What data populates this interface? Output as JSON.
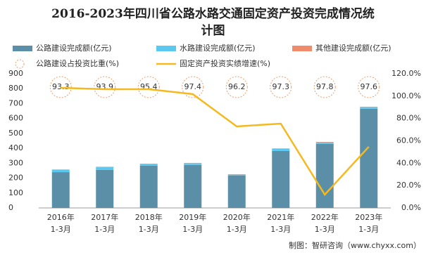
{
  "chart_data": {
    "type": "bar",
    "title": "2016-2023年四川省公路水路交通固定资产投资完成情况统计图",
    "categories": [
      [
        "2016年",
        "1-3月"
      ],
      [
        "2017年",
        "1-3月"
      ],
      [
        "2018年",
        "1-3月"
      ],
      [
        "2019年",
        "1-3月"
      ],
      [
        "2020年",
        "1-3月"
      ],
      [
        "2021年",
        "1-3月"
      ],
      [
        "2022年",
        "1-3月"
      ],
      [
        "2023年",
        "1-3月"
      ]
    ],
    "series": [
      {
        "name": "公路建设完成额(亿元)",
        "color": "#5b8fa8",
        "values": [
          240,
          255,
          283,
          288,
          217,
          382,
          430,
          665
        ]
      },
      {
        "name": "水路建设完成额(亿元)",
        "color": "#5bc8f0",
        "values": [
          15,
          18,
          12,
          12,
          7,
          14,
          10,
          12
        ]
      },
      {
        "name": "其他建设完成额(亿元)",
        "color": "#f08c6c",
        "values": [
          3,
          3,
          2,
          2,
          2,
          3,
          3,
          2
        ]
      },
      {
        "name": "公路建设占投资比重(%)",
        "color": "#e8a070",
        "style": "dashed-circle",
        "values": [
          93.3,
          93.9,
          95.4,
          97.4,
          96.2,
          97.3,
          97.8,
          97.6
        ]
      },
      {
        "name": "固定资产投资实绩增速(%)",
        "color": "#f5b920",
        "style": "line",
        "axis": "y2",
        "values": [
          107.4,
          106.2,
          106.2,
          101.8,
          72.9,
          75.4,
          11.9,
          54.7
        ]
      }
    ],
    "ylim": [
      0,
      900
    ],
    "yticks": [
      0,
      100,
      200,
      300,
      400,
      500,
      600,
      700,
      800,
      900
    ],
    "y2lim": [
      0,
      120
    ],
    "y2ticks": [
      {
        "value": 0,
        "label": "0.0%"
      },
      {
        "value": 20,
        "label": "20.0%"
      },
      {
        "value": 40,
        "label": "40.0%"
      },
      {
        "value": 60,
        "label": "60.0%"
      },
      {
        "value": 80,
        "label": "80.0%"
      },
      {
        "value": 100,
        "label": "100.0%"
      },
      {
        "value": 120,
        "label": "120.0%"
      }
    ],
    "source": "制图：智研咨询（www.chyxx.com）"
  }
}
